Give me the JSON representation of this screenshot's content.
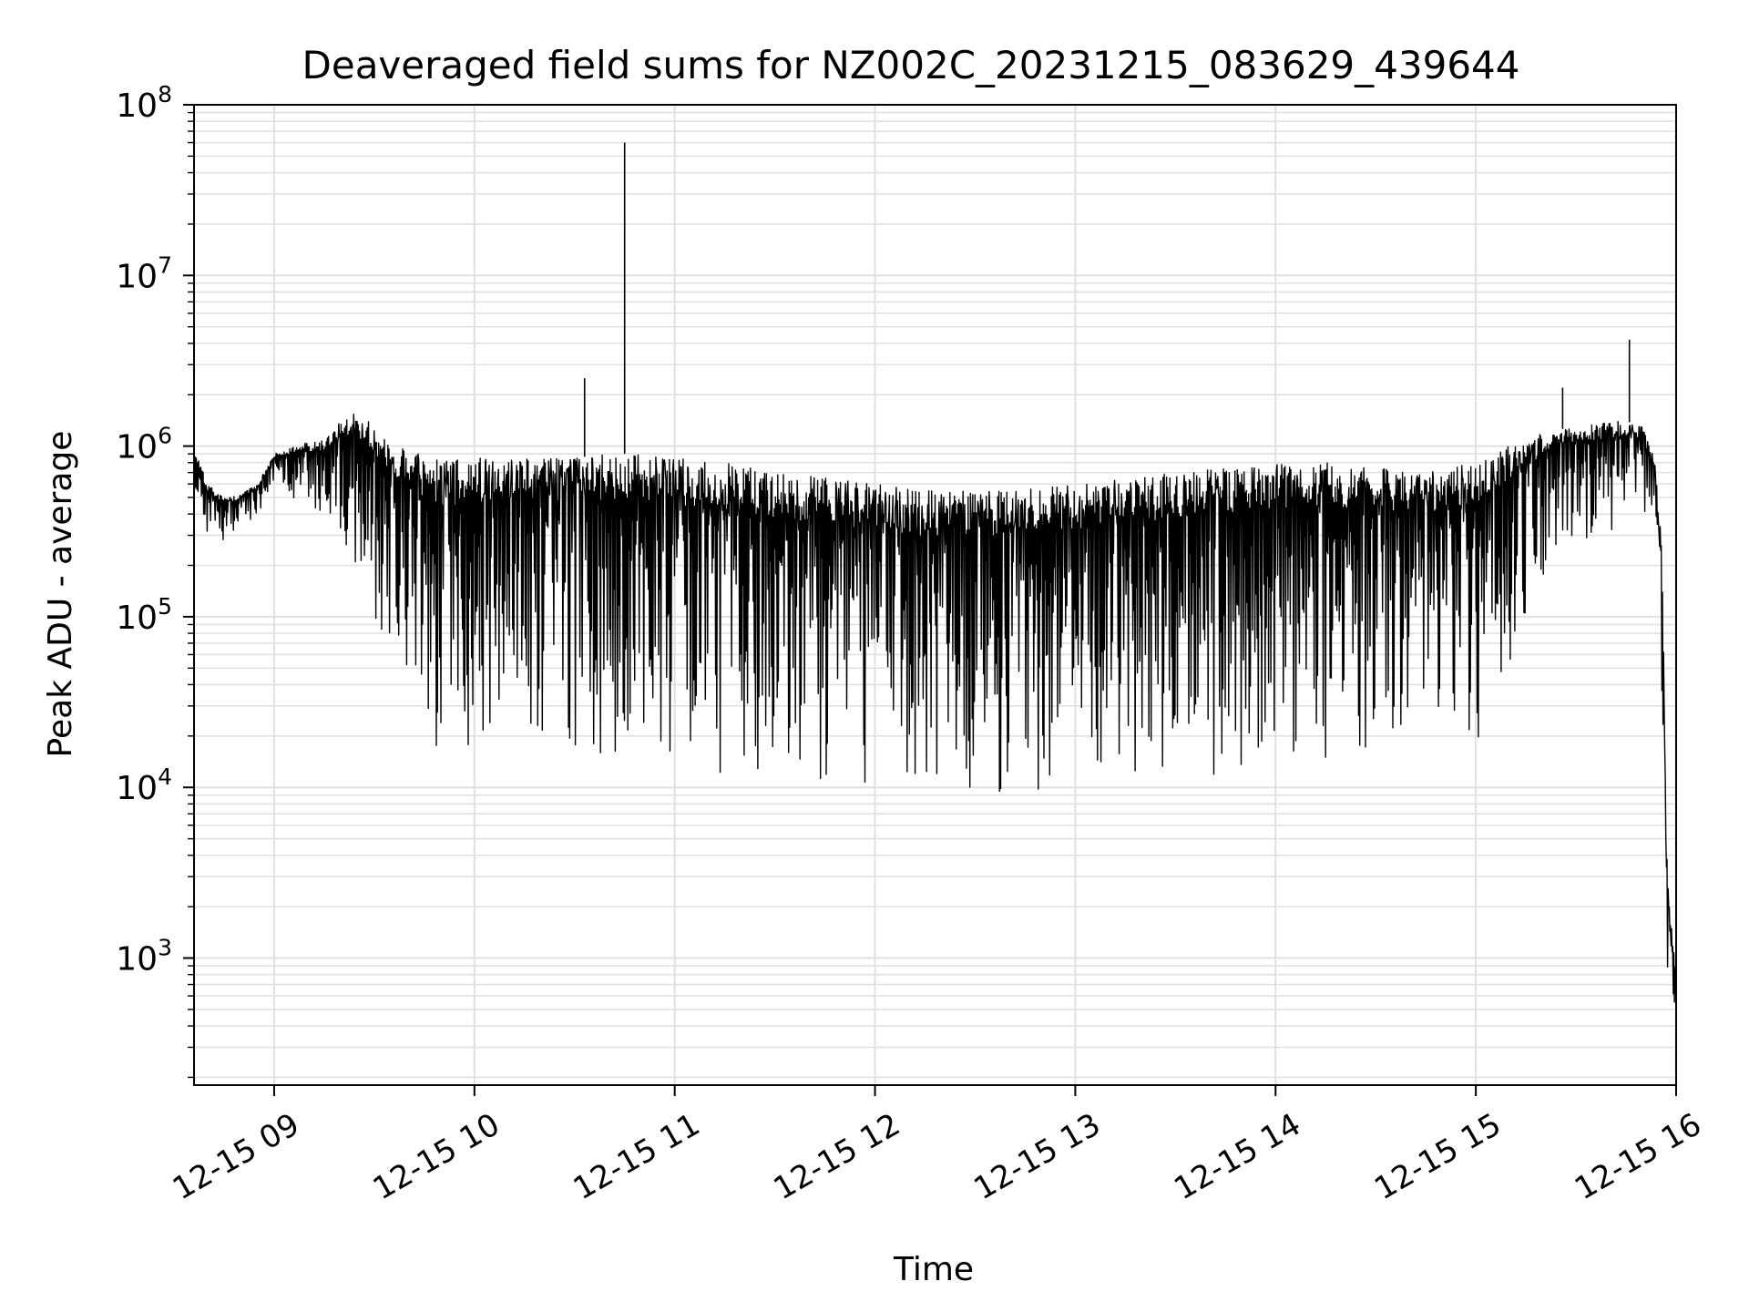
{
  "chart_data": {
    "type": "line",
    "title": "Deaveraged field sums for NZ002C_20231215_083629_439644",
    "xlabel": "Time",
    "ylabel": "Peak ADU - average",
    "yscale": "log",
    "grid": true,
    "line_color": "#000000",
    "grid_color": "#e0e0e0",
    "xlim": [
      "12-15 08:36",
      "12-15 16:00"
    ],
    "ylim": [
      180,
      100000000
    ],
    "x_ticks": [
      {
        "label": "12-15 09",
        "hour": 9
      },
      {
        "label": "12-15 10",
        "hour": 10
      },
      {
        "label": "12-15 11",
        "hour": 11
      },
      {
        "label": "12-15 12",
        "hour": 12
      },
      {
        "label": "12-15 13",
        "hour": 13
      },
      {
        "label": "12-15 14",
        "hour": 14
      },
      {
        "label": "12-15 15",
        "hour": 15
      },
      {
        "label": "12-15 16",
        "hour": 16
      }
    ],
    "y_ticks": [
      {
        "base": "10",
        "exp": "3",
        "value": 1000
      },
      {
        "base": "10",
        "exp": "4",
        "value": 10000
      },
      {
        "base": "10",
        "exp": "5",
        "value": 100000
      },
      {
        "base": "10",
        "exp": "6",
        "value": 1000000
      },
      {
        "base": "10",
        "exp": "7",
        "value": 10000000
      },
      {
        "base": "10",
        "exp": "8",
        "value": 100000000
      }
    ],
    "series": [
      {
        "x": [
          "12-15 08:36",
          "12-15 08:40",
          "12-15 08:45",
          "12-15 08:50",
          "12-15 08:55",
          "12-15 09:00",
          "12-15 09:05",
          "12-15 09:10",
          "12-15 09:15",
          "12-15 09:20",
          "12-15 09:25",
          "12-15 09:30",
          "12-15 09:35",
          "12-15 09:40",
          "12-15 09:45",
          "12-15 09:50",
          "12-15 09:55",
          "12-15 10:00",
          "12-15 10:10",
          "12-15 10:20",
          "12-15 10:30",
          "12-15 10:40",
          "12-15 10:45",
          "12-15 10:50",
          "12-15 11:00",
          "12-15 11:15",
          "12-15 11:30",
          "12-15 11:45",
          "12-15 12:00",
          "12-15 12:15",
          "12-15 12:30",
          "12-15 12:45",
          "12-15 13:00",
          "12-15 13:15",
          "12-15 13:30",
          "12-15 13:45",
          "12-15 14:00",
          "12-15 14:15",
          "12-15 14:30",
          "12-15 14:45",
          "12-15 15:00",
          "12-15 15:10",
          "12-15 15:20",
          "12-15 15:30",
          "12-15 15:40",
          "12-15 15:45",
          "12-15 15:50",
          "12-15 15:52",
          "12-15 15:54",
          "12-15 15:56",
          "12-15 15:57",
          "12-15 15:58",
          "12-15 16:00"
        ],
        "upper": [
          1000000,
          600000,
          500000,
          520000,
          600000,
          900000,
          1000000,
          1050000,
          1100000,
          1400000,
          1600000,
          1300000,
          1000000,
          950000,
          900000,
          850000,
          850000,
          850000,
          850000,
          850000,
          850000,
          900000,
          900000,
          900000,
          850000,
          800000,
          700000,
          650000,
          600000,
          550000,
          550000,
          580000,
          600000,
          650000,
          700000,
          750000,
          800000,
          800000,
          750000,
          700000,
          800000,
          1000000,
          1200000,
          1300000,
          1400000,
          1400000,
          1300000,
          1000000,
          800000,
          200000,
          5000,
          2000,
          900
        ],
        "lower": [
          350000,
          300000,
          280000,
          320000,
          400000,
          600000,
          500000,
          400000,
          350000,
          200000,
          150000,
          80000,
          50000,
          30000,
          15000,
          12000,
          10000,
          15000,
          15000,
          15000,
          13000,
          12000,
          12000,
          12000,
          12000,
          11000,
          10000,
          9000,
          8500,
          8000,
          8000,
          8500,
          9000,
          10000,
          11000,
          12000,
          13000,
          14000,
          15000,
          16000,
          18000,
          40000,
          150000,
          250000,
          300000,
          350000,
          400000,
          300000,
          150000,
          5000,
          700,
          600,
          300
        ],
        "spikes": [
          {
            "x": "12-15 10:33",
            "y": 2500000
          },
          {
            "x": "12-15 10:45",
            "y": 60000000
          },
          {
            "x": "12-15 15:46",
            "y": 4200000
          },
          {
            "x": "12-15 15:26",
            "y": 2200000
          }
        ]
      }
    ]
  }
}
